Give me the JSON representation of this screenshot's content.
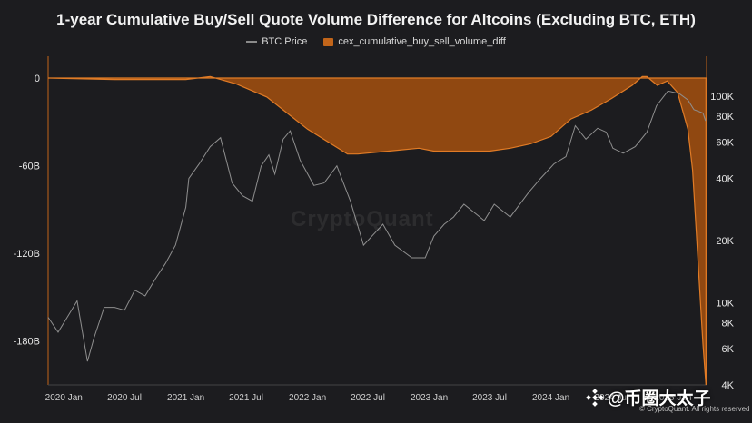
{
  "chart_data": {
    "type": "area",
    "title": "1-year Cumulative Buy/Sell Quote Volume Difference for Altcoins (Excluding BTC, ETH)",
    "series": [
      {
        "name": "cex_cumulative_buy_sell_volume_diff",
        "axis": "left",
        "color": "#c2651a",
        "x": [
          "2019-11-15",
          "2020-06-01",
          "2021-01-01",
          "2021-03-15",
          "2021-04-15",
          "2021-06-01",
          "2021-09-01",
          "2022-01-01",
          "2022-05-01",
          "2022-06-01",
          "2022-09-01",
          "2022-12-01",
          "2023-01-15",
          "2023-04-01",
          "2023-07-01",
          "2023-09-01",
          "2023-11-01",
          "2024-01-01",
          "2024-03-01",
          "2024-05-01",
          "2024-07-01",
          "2024-09-01",
          "2024-10-01",
          "2024-10-15",
          "2024-11-15",
          "2024-11-25",
          "2024-12-15",
          "2025-01-15",
          "2025-02-15",
          "2025-03-01",
          "2025-04-01",
          "2025-04-10"
        ],
        "values": [
          0,
          -1,
          -1,
          1,
          -1,
          -4,
          -13,
          -35,
          -52,
          -52,
          -50,
          -48,
          -50,
          -50,
          -50,
          -48,
          -45,
          -40,
          -28,
          -22,
          -14,
          -5,
          1,
          1,
          -5,
          -4,
          -2,
          -10,
          -35,
          -63,
          -182,
          -210
        ]
      },
      {
        "name": "BTC Price",
        "axis": "right",
        "color": "#8a8a8a",
        "x": [
          "2019-11-15",
          "2019-12-15",
          "2020-01-15",
          "2020-02-10",
          "2020-03-12",
          "2020-04-01",
          "2020-05-01",
          "2020-06-01",
          "2020-07-01",
          "2020-08-01",
          "2020-09-01",
          "2020-10-01",
          "2020-11-01",
          "2020-12-01",
          "2021-01-01",
          "2021-01-10",
          "2021-02-10",
          "2021-03-15",
          "2021-04-15",
          "2021-05-20",
          "2021-06-20",
          "2021-07-20",
          "2021-08-15",
          "2021-09-07",
          "2021-09-25",
          "2021-10-20",
          "2021-11-10",
          "2021-12-10",
          "2022-01-20",
          "2022-02-20",
          "2022-03-30",
          "2022-05-10",
          "2022-06-18",
          "2022-08-15",
          "2022-09-20",
          "2022-11-10",
          "2022-12-20",
          "2023-01-15",
          "2023-02-15",
          "2023-03-15",
          "2023-04-15",
          "2023-06-15",
          "2023-07-15",
          "2023-09-01",
          "2023-10-25",
          "2023-12-01",
          "2024-01-10",
          "2024-02-15",
          "2024-03-14",
          "2024-04-15",
          "2024-05-20",
          "2024-06-15",
          "2024-07-05",
          "2024-08-05",
          "2024-09-10",
          "2024-10-15",
          "2024-11-13",
          "2024-12-17",
          "2025-01-20",
          "2025-02-15",
          "2025-03-05",
          "2025-04-01",
          "2025-04-09"
        ],
        "values": [
          8500,
          7200,
          8700,
          10200,
          5200,
          6800,
          9500,
          9500,
          9200,
          11500,
          10800,
          13000,
          15500,
          19000,
          29000,
          40000,
          47000,
          57000,
          63000,
          38000,
          33000,
          31000,
          46000,
          52000,
          42000,
          62000,
          68000,
          49000,
          37000,
          38000,
          46000,
          31000,
          19000,
          24000,
          19000,
          16500,
          16500,
          21000,
          24000,
          26000,
          30000,
          25000,
          30000,
          26000,
          34000,
          40000,
          47000,
          51000,
          72000,
          62000,
          70000,
          67000,
          56000,
          53000,
          57000,
          67000,
          90000,
          106000,
          103000,
          96000,
          86000,
          83000,
          76000
        ]
      }
    ],
    "y_left": {
      "ticks": [
        0,
        -60,
        -120,
        -180
      ],
      "labels": [
        "0",
        "-60B",
        "-120B",
        "-180B"
      ],
      "range": [
        -210,
        0
      ]
    },
    "y_right": {
      "scale": "log",
      "ticks": [
        4000,
        6000,
        8000,
        10000,
        20000,
        40000,
        60000,
        80000,
        100000
      ],
      "labels": [
        "4K",
        "6K",
        "8K",
        "10K",
        "20K",
        "40K",
        "60K",
        "80K",
        "100K"
      ]
    },
    "x_axis": {
      "ticks": [
        "2020-01-01",
        "2020-07-01",
        "2021-01-01",
        "2021-07-01",
        "2022-01-01",
        "2022-07-01",
        "2023-01-01",
        "2023-07-01",
        "2024-01-01",
        "2024-07-01",
        "2025-01-01"
      ],
      "labels": [
        "2020 Jan",
        "2020 Jul",
        "2021 Jan",
        "2021 Jul",
        "2022 Jan",
        "2022 Jul",
        "2023 Jan",
        "2023 Jul",
        "2024 Jan",
        "2024 Jul",
        "2025 Jan"
      ]
    },
    "grid": false,
    "legend_position": "top-center",
    "watermark": "CryptoQuant",
    "copyright": "© CryptoQuant. All rights reserved"
  },
  "overlay": {
    "brand_text": "@币圈大太子"
  }
}
